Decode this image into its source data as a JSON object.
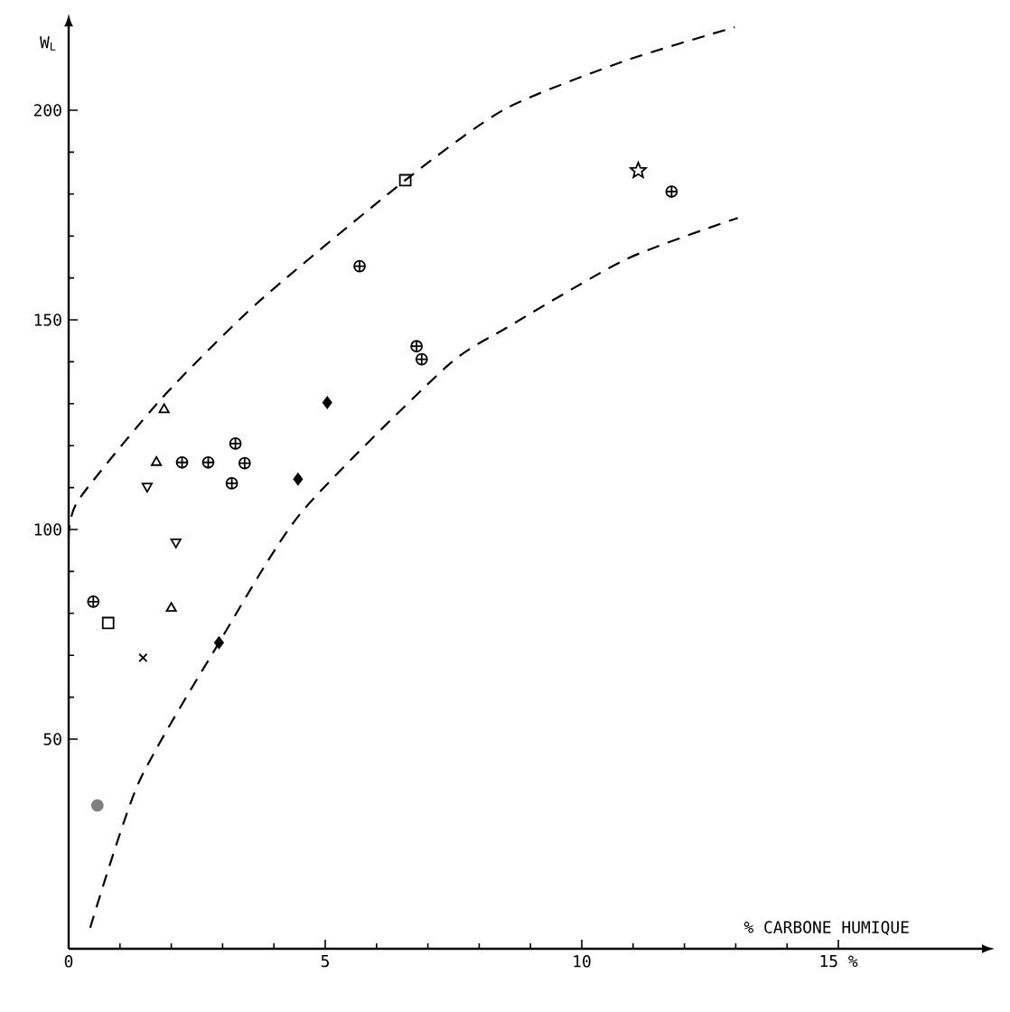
{
  "chart_data": {
    "type": "scatter",
    "xlabel": "% CARBONE HUMIQUE",
    "ylabel": "W$_{L}$",
    "xlim": [
      0,
      17.8
    ],
    "ylim": [
      0,
      220
    ],
    "xticks": [
      0,
      5,
      10,
      {
        "value": 15,
        "label": "15 %"
      }
    ],
    "yticks": [
      50,
      100,
      150,
      200
    ],
    "grid": false,
    "series": [
      {
        "color": "#000000",
        "x": [
          2.21,
          2.72,
          3.25,
          3.43,
          3.18,
          0.48,
          5.67,
          6.78,
          6.88,
          11.75
        ],
        "values": [
          116,
          116,
          120.5,
          115.8,
          111,
          82.8,
          162.8,
          143.7,
          140.6,
          180.6
        ]
      },
      {
        "marker": "triangle",
        "color": "#000000",
        "x": [
          1.86,
          1.71,
          2.0
        ],
        "values": [
          128.6,
          116,
          81.2
        ]
      },
      {
        "marker": "triangle-down",
        "color": "#000000",
        "x": [
          1.53,
          2.09
        ],
        "values": [
          110.3,
          97
        ]
      },
      {
        "marker": "square",
        "color": "#000000",
        "x": [
          0.77,
          6.56
        ],
        "values": [
          77.7,
          183.3
        ]
      },
      {
        "marker": "cross",
        "color": "#000000",
        "x": [
          1.45
        ],
        "values": [
          69.4
        ]
      },
      {
        "marker": "diamond",
        "color": "#000000",
        "x": [
          2.93,
          4.47,
          5.04
        ],
        "values": [
          73,
          112,
          130.3
        ]
      },
      {
        "marker": "star",
        "color": "#000000",
        "x": [
          11.1
        ],
        "values": [
          185.6
        ]
      },
      {
        "marker": "circle",
        "color": "#808080",
        "x": [
          0.56
        ],
        "values": [
          34.2
        ]
      },
      {
        "type": "line",
        "marker": "none",
        "line_style": "dashed",
        "color": "#000000",
        "x": [
          0,
          0.19,
          1.83,
          3.71,
          6.56,
          8.52,
          10.87,
          12.98
        ],
        "values": [
          98,
          107,
          131.5,
          154.4,
          183.3,
          200.4,
          211.9,
          219.8
        ]
      },
      {
        "type": "line",
        "marker": "none",
        "line_style": "dashed",
        "color": "#000000",
        "x": [
          0.42,
          1.36,
          2.93,
          4.53,
          7.35,
          8.52,
          10.87,
          13.04
        ],
        "values": [
          5,
          39.5,
          73,
          104,
          138.7,
          148,
          164.5,
          174.3
        ]
      }
    ]
  }
}
